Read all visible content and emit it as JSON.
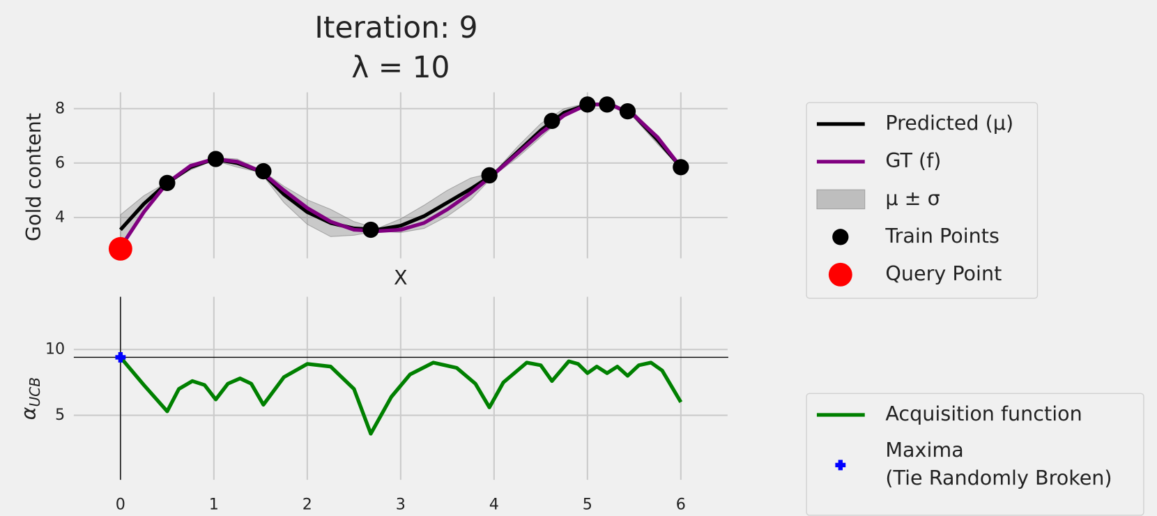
{
  "chart_data": [
    {
      "type": "line",
      "title": "Iteration: 9",
      "subtitle": "λ = 10",
      "ylabel": "Gold content",
      "xlabel": "X",
      "x": [
        0,
        0.25,
        0.5,
        0.75,
        1.0,
        1.25,
        1.5,
        1.75,
        2.0,
        2.25,
        2.5,
        2.75,
        3.0,
        3.25,
        3.5,
        3.75,
        4.0,
        4.25,
        4.5,
        4.75,
        5.0,
        5.25,
        5.5,
        5.75,
        6.0
      ],
      "series": [
        {
          "name": "Predicted (μ)",
          "color": "#000000",
          "values": [
            3.55,
            4.5,
            5.27,
            5.85,
            6.15,
            6.0,
            5.7,
            4.85,
            4.2,
            3.8,
            3.6,
            3.55,
            3.7,
            4.05,
            4.55,
            5.05,
            5.6,
            6.4,
            7.2,
            7.85,
            8.15,
            8.15,
            7.75,
            6.85,
            5.85
          ]
        },
        {
          "name": "GT (f)",
          "color": "#800080",
          "values": [
            2.9,
            4.2,
            5.27,
            5.9,
            6.15,
            6.05,
            5.7,
            5.0,
            4.35,
            3.85,
            3.55,
            3.5,
            3.55,
            3.8,
            4.3,
            4.9,
            5.6,
            6.35,
            7.1,
            7.75,
            8.15,
            8.15,
            7.75,
            6.95,
            5.85
          ]
        }
      ],
      "band": {
        "name": "μ ± σ",
        "color": "#808080",
        "lower": [
          3.0,
          4.2,
          5.25,
          5.75,
          6.1,
          5.85,
          5.65,
          4.55,
          3.75,
          3.3,
          3.35,
          3.5,
          3.45,
          3.6,
          4.05,
          4.65,
          5.55,
          6.2,
          6.95,
          7.7,
          8.1,
          8.1,
          7.65,
          6.7,
          5.8
        ],
        "upper": [
          4.1,
          4.8,
          5.3,
          5.95,
          6.2,
          6.15,
          5.75,
          5.15,
          4.65,
          4.3,
          3.85,
          3.6,
          3.95,
          4.45,
          5.0,
          5.45,
          5.65,
          6.6,
          7.45,
          8.0,
          8.2,
          8.2,
          7.85,
          7.0,
          5.9
        ]
      },
      "points": [
        {
          "name": "Train Points",
          "color": "#000000",
          "marker": "circle",
          "x": [
            0.5,
            1.02,
            1.53,
            2.68,
            3.95,
            4.62,
            5.0,
            5.21,
            5.43,
            6.0
          ],
          "values": [
            5.27,
            6.15,
            5.7,
            3.55,
            5.55,
            7.55,
            8.15,
            8.15,
            7.9,
            5.85
          ]
        },
        {
          "name": "Query Point",
          "color": "#ff0000",
          "marker": "big-circle",
          "x": [
            0
          ],
          "values": [
            2.85
          ]
        }
      ],
      "xlim": [
        -0.5,
        6.5
      ],
      "ylim": [
        2.5,
        8.6
      ],
      "xticks": [
        0,
        1,
        2,
        3,
        4,
        5,
        6
      ],
      "yticks": [
        4,
        6,
        8
      ],
      "show_xtick_labels": false,
      "grid": true,
      "legend": "outside right"
    },
    {
      "type": "line",
      "ylabel": "α",
      "ylabel_sub": "UCB",
      "x": [
        0,
        0.25,
        0.5,
        0.625,
        0.77,
        0.9,
        1.02,
        1.15,
        1.28,
        1.4,
        1.53,
        1.75,
        2.0,
        2.25,
        2.5,
        2.68,
        2.9,
        3.1,
        3.35,
        3.6,
        3.8,
        3.95,
        4.1,
        4.35,
        4.5,
        4.62,
        4.8,
        4.9,
        5.0,
        5.1,
        5.21,
        5.32,
        5.43,
        5.55,
        5.68,
        5.8,
        6.0
      ],
      "series": [
        {
          "name": "Acquisition function",
          "color": "#008000",
          "values": [
            9.4,
            7.3,
            5.3,
            7.0,
            7.6,
            7.3,
            6.2,
            7.4,
            7.8,
            7.4,
            5.8,
            7.9,
            8.9,
            8.7,
            7.0,
            3.6,
            6.4,
            8.1,
            9.0,
            8.6,
            7.4,
            5.6,
            7.5,
            9.0,
            8.8,
            7.6,
            9.1,
            8.9,
            8.2,
            8.7,
            8.2,
            8.7,
            8.0,
            8.8,
            9.0,
            8.4,
            6.0
          ]
        }
      ],
      "points": [
        {
          "name": [
            "Maxima",
            "(Tie Randomly Broken)"
          ],
          "color": "#0000ff",
          "marker": "plus",
          "x": [
            0
          ],
          "values": [
            9.4
          ]
        }
      ],
      "axvline": 0,
      "axhline": 9.4,
      "xlim": [
        -0.5,
        6.5
      ],
      "ylim": [
        0.1,
        14
      ],
      "xticks": [
        0,
        1,
        2,
        3,
        4,
        5,
        6
      ],
      "yticks": [
        5,
        10
      ],
      "show_xtick_labels": true,
      "grid": true,
      "legend": "outside lower right"
    }
  ]
}
